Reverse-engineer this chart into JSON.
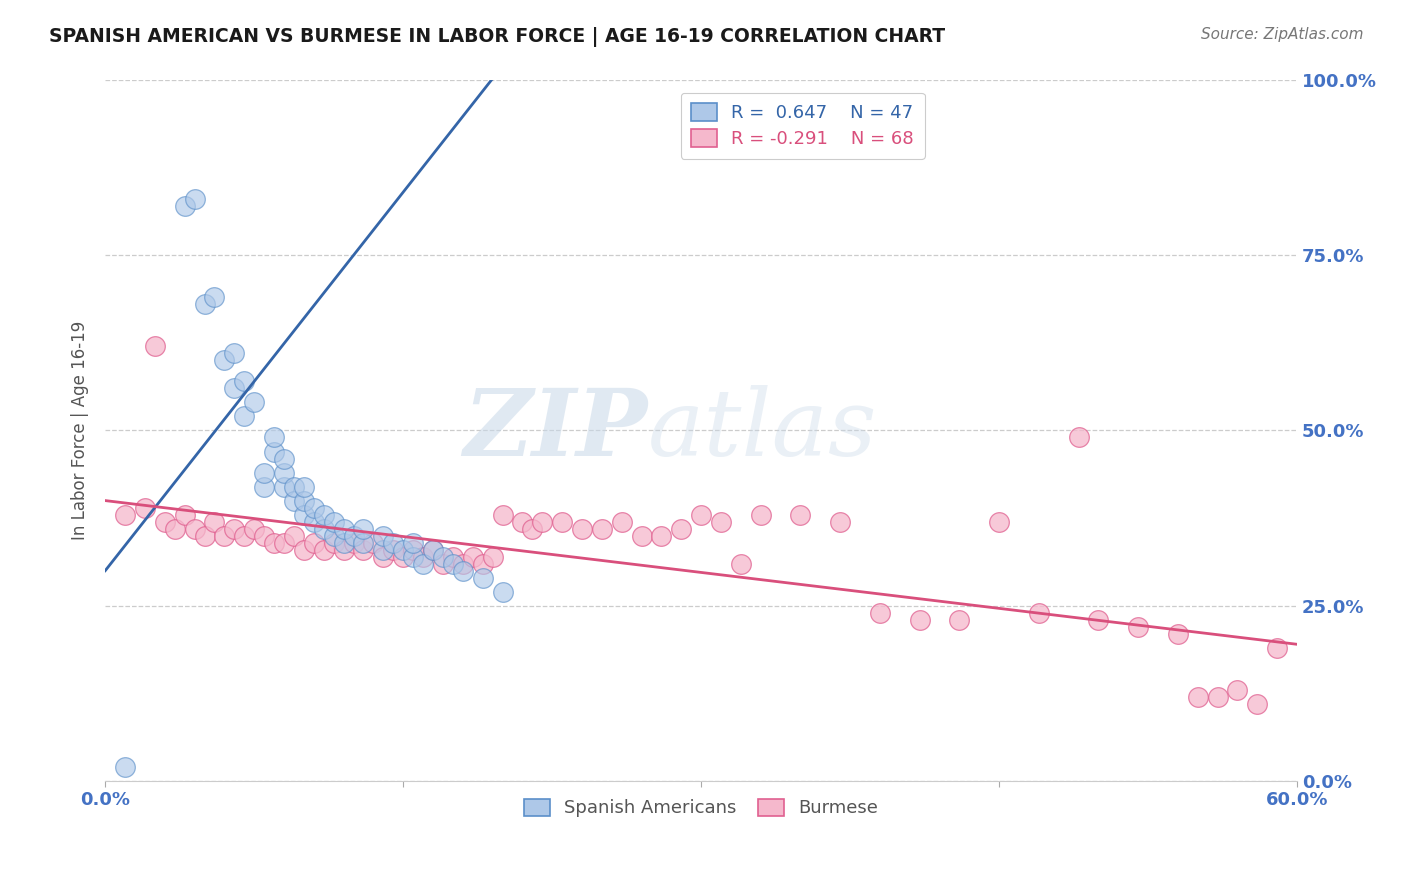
{
  "title": "SPANISH AMERICAN VS BURMESE IN LABOR FORCE | AGE 16-19 CORRELATION CHART",
  "source": "Source: ZipAtlas.com",
  "ylabel": "In Labor Force | Age 16-19",
  "watermark_zip": "ZIP",
  "watermark_atlas": "atlas",
  "xlim": [
    0.0,
    0.6
  ],
  "ylim": [
    0.0,
    1.0
  ],
  "blue_R": 0.647,
  "blue_N": 47,
  "pink_R": -0.291,
  "pink_N": 68,
  "blue_color": "#aec8e8",
  "blue_edge_color": "#5b8fc9",
  "pink_color": "#f5b8cc",
  "pink_edge_color": "#e06090",
  "blue_line_color": "#3465a8",
  "pink_line_color": "#d94f7c",
  "blue_scatter_x": [
    0.01,
    0.04,
    0.045,
    0.05,
    0.055,
    0.06,
    0.065,
    0.065,
    0.07,
    0.07,
    0.075,
    0.08,
    0.08,
    0.085,
    0.085,
    0.09,
    0.09,
    0.09,
    0.095,
    0.095,
    0.1,
    0.1,
    0.1,
    0.105,
    0.105,
    0.11,
    0.11,
    0.115,
    0.115,
    0.12,
    0.12,
    0.125,
    0.13,
    0.13,
    0.14,
    0.14,
    0.145,
    0.15,
    0.155,
    0.155,
    0.16,
    0.165,
    0.17,
    0.175,
    0.18,
    0.19,
    0.2
  ],
  "blue_scatter_y": [
    0.02,
    0.82,
    0.83,
    0.68,
    0.69,
    0.6,
    0.61,
    0.56,
    0.57,
    0.52,
    0.54,
    0.42,
    0.44,
    0.47,
    0.49,
    0.42,
    0.44,
    0.46,
    0.4,
    0.42,
    0.38,
    0.4,
    0.42,
    0.37,
    0.39,
    0.36,
    0.38,
    0.35,
    0.37,
    0.34,
    0.36,
    0.35,
    0.34,
    0.36,
    0.33,
    0.35,
    0.34,
    0.33,
    0.32,
    0.34,
    0.31,
    0.33,
    0.32,
    0.31,
    0.3,
    0.29,
    0.27
  ],
  "pink_scatter_x": [
    0.01,
    0.02,
    0.025,
    0.03,
    0.035,
    0.04,
    0.045,
    0.05,
    0.055,
    0.06,
    0.065,
    0.07,
    0.075,
    0.08,
    0.085,
    0.09,
    0.095,
    0.1,
    0.105,
    0.11,
    0.115,
    0.12,
    0.125,
    0.13,
    0.135,
    0.14,
    0.145,
    0.15,
    0.155,
    0.16,
    0.165,
    0.17,
    0.175,
    0.18,
    0.185,
    0.19,
    0.195,
    0.2,
    0.21,
    0.215,
    0.22,
    0.23,
    0.24,
    0.25,
    0.26,
    0.27,
    0.28,
    0.29,
    0.3,
    0.31,
    0.32,
    0.33,
    0.35,
    0.37,
    0.39,
    0.41,
    0.43,
    0.45,
    0.47,
    0.49,
    0.5,
    0.52,
    0.54,
    0.55,
    0.56,
    0.57,
    0.58,
    0.59
  ],
  "pink_scatter_y": [
    0.38,
    0.39,
    0.62,
    0.37,
    0.36,
    0.38,
    0.36,
    0.35,
    0.37,
    0.35,
    0.36,
    0.35,
    0.36,
    0.35,
    0.34,
    0.34,
    0.35,
    0.33,
    0.34,
    0.33,
    0.34,
    0.33,
    0.34,
    0.33,
    0.34,
    0.32,
    0.33,
    0.32,
    0.33,
    0.32,
    0.33,
    0.31,
    0.32,
    0.31,
    0.32,
    0.31,
    0.32,
    0.38,
    0.37,
    0.36,
    0.37,
    0.37,
    0.36,
    0.36,
    0.37,
    0.35,
    0.35,
    0.36,
    0.38,
    0.37,
    0.31,
    0.38,
    0.38,
    0.37,
    0.24,
    0.23,
    0.23,
    0.37,
    0.24,
    0.49,
    0.23,
    0.22,
    0.21,
    0.12,
    0.12,
    0.13,
    0.11,
    0.19
  ],
  "blue_trend_x": [
    0.0,
    0.2
  ],
  "blue_trend_y": [
    0.3,
    1.02
  ],
  "pink_trend_x": [
    0.0,
    0.6
  ],
  "pink_trend_y": [
    0.4,
    0.195
  ],
  "legend_blue_label_r": "R =  0.647",
  "legend_blue_label_n": "N = 47",
  "legend_pink_label_r": "R = -0.291",
  "legend_pink_label_n": "N = 68",
  "background_color": "#ffffff",
  "grid_color": "#cccccc",
  "right_ytick_color": "#4472c4",
  "bottom_xtick_color": "#4472c4",
  "label_color": "#555555",
  "title_color": "#1a1a1a"
}
